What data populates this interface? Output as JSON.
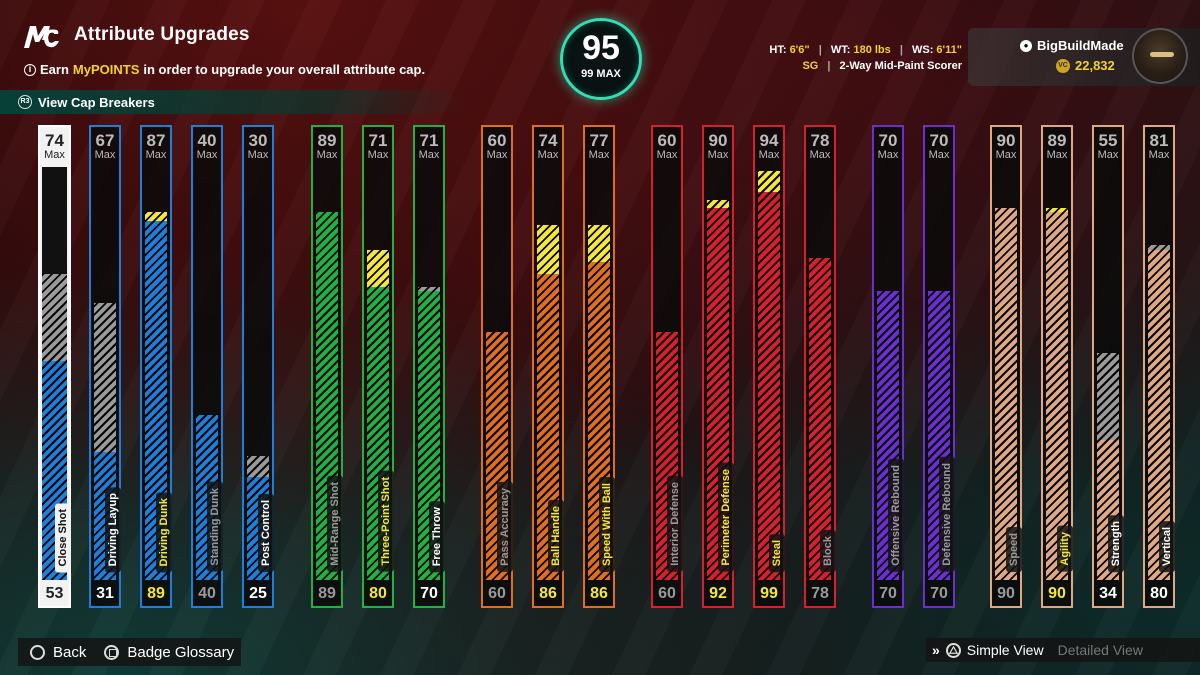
{
  "header": {
    "logo_text": "MC",
    "title": "Attribute Upgrades",
    "info_prefix": "Earn",
    "info_highlight": "MyPOINTS",
    "info_suffix": "in order to upgrade your overall attribute cap.",
    "cap_breakers_label": "View Cap Breakers",
    "cap_breakers_button": "R3"
  },
  "overall": {
    "value": "95",
    "max_label": "99 MAX"
  },
  "physicals": {
    "ht_label": "HT:",
    "ht": "6'6\"",
    "wt_label": "WT:",
    "wt": "180 lbs",
    "ws_label": "WS:",
    "ws": "6'11\"",
    "position": "SG",
    "archetype": "2-Way Mid-Paint Scorer"
  },
  "profile": {
    "username": "BigBuildMade",
    "vc": "22,832",
    "vc_icon": "VC"
  },
  "colors": {
    "finishing": "#1f7fd8",
    "shooting": "#22b043",
    "playmaking": "#e06e20",
    "defense": "#d6202e",
    "rebounding": "#6b2fcf",
    "physicals": "#e0a882",
    "upgrade": "#f3e83a",
    "cap": "#9a9a9a"
  },
  "max_label": "Max",
  "attributes": [
    {
      "name": "Close Shot",
      "max": 74,
      "current": 53,
      "cap": 74,
      "color": "#1f7fd8",
      "selected": true,
      "label_color": "#111",
      "value_color": "#222"
    },
    {
      "name": "Driving Layup",
      "max": 67,
      "current": 31,
      "cap": 67,
      "color": "#1f7fd8",
      "label_color": "#fff",
      "value_color": "#fff"
    },
    {
      "name": "Driving Dunk",
      "max": 87,
      "current": 87,
      "upgrade": 89,
      "color": "#1f7fd8",
      "label_color": "#f3e83a",
      "value_color": "#f3e83a"
    },
    {
      "name": "Standing Dunk",
      "max": 40,
      "current": 40,
      "color": "#1f7fd8",
      "label_color": "#999",
      "value_color": "#999"
    },
    {
      "name": "Post Control",
      "max": 30,
      "current": 25,
      "cap": 30,
      "color": "#1f7fd8",
      "label_color": "#fff",
      "value_color": "#fff"
    },
    {
      "name": "Mid-Range Shot",
      "max": 89,
      "current": 89,
      "color": "#22b043",
      "label_color": "#999",
      "value_color": "#999"
    },
    {
      "name": "Three-Point Shot",
      "max": 71,
      "current": 71,
      "upgrade": 80,
      "color": "#22b043",
      "label_color": "#f3e83a",
      "value_color": "#f3e83a"
    },
    {
      "name": "Free Throw",
      "max": 71,
      "current": 70,
      "cap": 71,
      "color": "#22b043",
      "label_color": "#fff",
      "value_color": "#fff"
    },
    {
      "name": "Pass Accuracy",
      "max": 60,
      "current": 60,
      "color": "#e06e20",
      "label_color": "#999",
      "value_color": "#999"
    },
    {
      "name": "Ball Handle",
      "max": 74,
      "current": 74,
      "upgrade": 86,
      "color": "#e06e20",
      "label_color": "#f3e83a",
      "value_color": "#f3e83a"
    },
    {
      "name": "Speed With Ball",
      "max": 77,
      "current": 77,
      "upgrade": 86,
      "color": "#e06e20",
      "label_color": "#f3e83a",
      "value_color": "#f3e83a"
    },
    {
      "name": "Interior Defense",
      "max": 60,
      "current": 60,
      "color": "#d6202e",
      "label_color": "#999",
      "value_color": "#999"
    },
    {
      "name": "Perimeter Defense",
      "max": 90,
      "current": 90,
      "upgrade": 92,
      "color": "#d6202e",
      "label_color": "#f3e83a",
      "value_color": "#f3e83a"
    },
    {
      "name": "Steal",
      "max": 94,
      "current": 94,
      "upgrade": 99,
      "color": "#d6202e",
      "label_color": "#f3e83a",
      "value_color": "#f3e83a"
    },
    {
      "name": "Block",
      "max": 78,
      "current": 78,
      "color": "#d6202e",
      "label_color": "#999",
      "value_color": "#999"
    },
    {
      "name": "Offensive Rebound",
      "max": 70,
      "current": 70,
      "color": "#6b2fcf",
      "label_color": "#999",
      "value_color": "#999"
    },
    {
      "name": "Defensive Rebound",
      "max": 70,
      "current": 70,
      "color": "#6b2fcf",
      "label_color": "#999",
      "value_color": "#999"
    },
    {
      "name": "Speed",
      "max": 90,
      "current": 90,
      "color": "#e0a882",
      "label_color": "#999",
      "value_color": "#999"
    },
    {
      "name": "Agility",
      "max": 89,
      "current": 89,
      "upgrade": 90,
      "color": "#e0a882",
      "label_color": "#f3e83a",
      "value_color": "#f3e83a"
    },
    {
      "name": "Strength",
      "max": 55,
      "current": 34,
      "cap": 55,
      "color": "#e0a882",
      "label_color": "#fff",
      "value_color": "#fff"
    },
    {
      "name": "Vertical",
      "max": 81,
      "current": 80,
      "cap": 81,
      "color": "#e0a882",
      "label_color": "#fff",
      "value_color": "#fff"
    }
  ],
  "footer": {
    "back": "Back",
    "glossary": "Badge Glossary",
    "simple_view": "Simple View",
    "detailed_view": "Detailed View"
  }
}
